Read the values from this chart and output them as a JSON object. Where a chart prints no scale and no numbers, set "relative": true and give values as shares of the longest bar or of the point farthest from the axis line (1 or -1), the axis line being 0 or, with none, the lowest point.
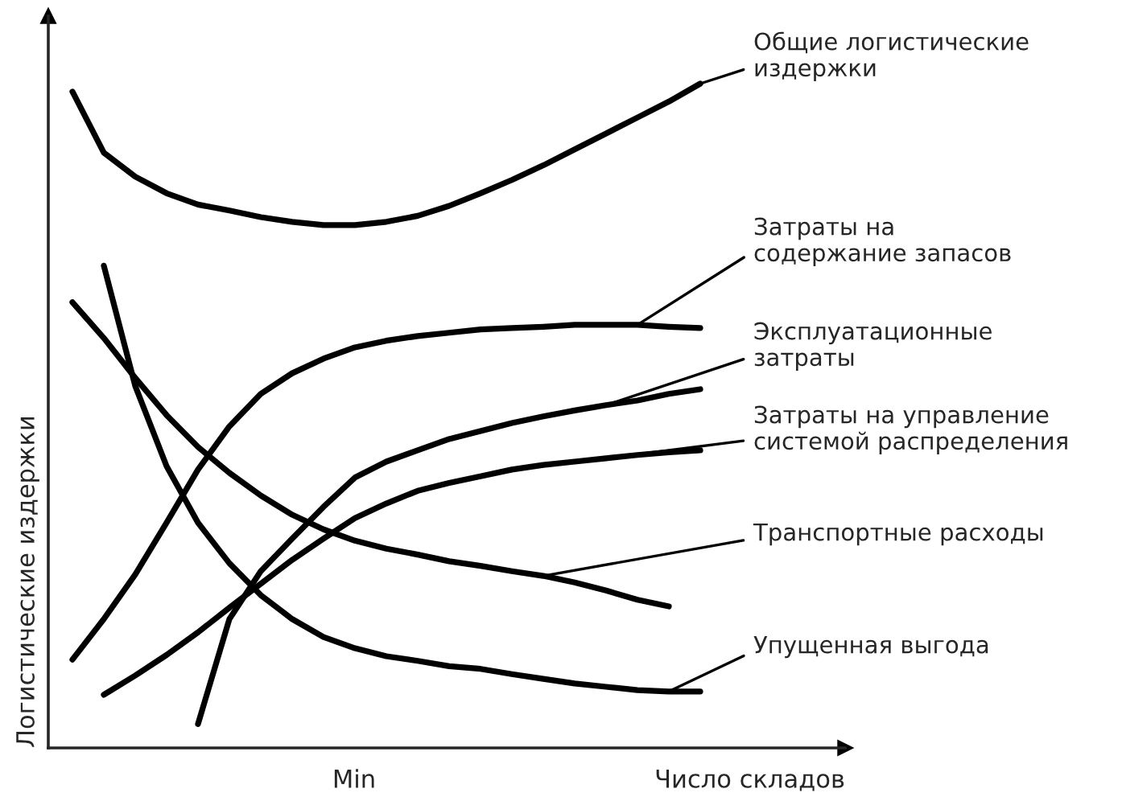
{
  "chart_data": {
    "type": "line",
    "relative": true,
    "xlabel": "Число складов",
    "ylabel": "Логистические издержки",
    "legend": false,
    "annotations": [
      "Min"
    ],
    "categories": [
      null,
      null,
      null,
      null,
      null,
      null,
      null,
      null,
      null,
      null,
      null,
      null,
      null,
      null,
      null,
      null,
      null,
      null,
      null,
      null,
      null
    ],
    "series": [
      {
        "name": "Общие логистические\nиздержки",
        "color": "#000000",
        "values": [
          0.988,
          0.896,
          0.86,
          0.835,
          0.818,
          0.809,
          0.799,
          0.792,
          0.787,
          0.787,
          0.792,
          0.801,
          0.816,
          0.835,
          0.855,
          0.877,
          0.901,
          0.925,
          0.949,
          0.973,
          1.0
        ]
      },
      {
        "name": "Затраты на\nсодержание запасов",
        "color": "#000000",
        "values": [
          0.133,
          0.194,
          0.261,
          0.339,
          0.419,
          0.484,
          0.533,
          0.564,
          0.586,
          0.603,
          0.613,
          0.62,
          0.625,
          0.63,
          0.632,
          0.634,
          0.637,
          0.637,
          0.637,
          0.634,
          0.632
        ]
      },
      {
        "name": "Эксплуатационные\nзатраты",
        "color": "#000000",
        "values": [
          null,
          null,
          null,
          null,
          0.036,
          0.194,
          0.266,
          0.315,
          0.363,
          0.407,
          0.431,
          0.448,
          0.465,
          0.477,
          0.489,
          0.499,
          0.508,
          0.516,
          0.523,
          0.533,
          0.54
        ]
      },
      {
        "name": "Затраты на управление\nсистемой распределения",
        "color": "#000000",
        "values": [
          null,
          0.08,
          0.109,
          0.14,
          0.174,
          0.211,
          0.247,
          0.283,
          0.315,
          0.346,
          0.368,
          0.387,
          0.399,
          0.409,
          0.419,
          0.426,
          0.431,
          0.436,
          0.441,
          0.445,
          0.448
        ]
      },
      {
        "name": "Транспортные расходы",
        "color": "#000000",
        "values": [
          0.671,
          0.617,
          0.557,
          0.501,
          0.453,
          0.414,
          0.38,
          0.351,
          0.329,
          0.312,
          0.3,
          0.291,
          0.281,
          0.274,
          0.266,
          0.259,
          0.249,
          0.237,
          0.223,
          0.213,
          null
        ]
      },
      {
        "name": "Упущенная выгода",
        "color": "#000000",
        "values": [
          null,
          0.726,
          0.545,
          0.424,
          0.339,
          0.278,
          0.23,
          0.194,
          0.167,
          0.15,
          0.138,
          0.131,
          0.123,
          0.119,
          0.111,
          0.104,
          0.097,
          0.092,
          0.087,
          0.085,
          0.085
        ]
      }
    ]
  }
}
